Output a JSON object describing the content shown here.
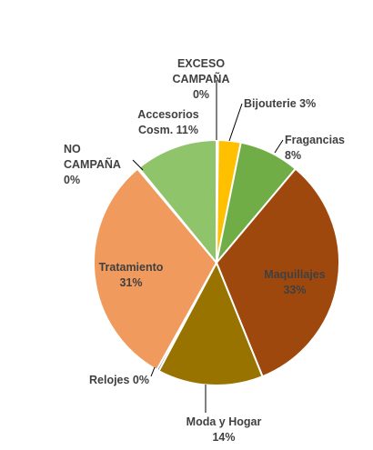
{
  "chart_data": {
    "type": "pie",
    "slices": [
      {
        "label": "EXCESO CAMPAÑA",
        "percent_label": "0%",
        "value": 0.2,
        "color": "#ffffff"
      },
      {
        "label": "Bijouterie",
        "percent_label": "3%",
        "value": 3,
        "color": "#ffc000"
      },
      {
        "label": "Fragancias",
        "percent_label": "8%",
        "value": 8,
        "color": "#70ad47"
      },
      {
        "label": "Maquillajes",
        "percent_label": "33%",
        "value": 33,
        "color": "#9e480e"
      },
      {
        "label": "Moda y Hogar",
        "percent_label": "14%",
        "value": 14,
        "color": "#997300"
      },
      {
        "label": "Relojes",
        "percent_label": "0%",
        "value": 0.3,
        "color": "#264478"
      },
      {
        "label": "Tratamiento",
        "percent_label": "31%",
        "value": 31,
        "color": "#f09a5d"
      },
      {
        "label": "NO CAMPAÑA",
        "percent_label": "0%",
        "value": 0.2,
        "color": "#ffffff"
      },
      {
        "label": "Accesorios Cosm.",
        "percent_label": "11%",
        "value": 11,
        "color": "#8fc46b"
      }
    ],
    "label_lines": [
      [
        "EXCESO",
        "CAMPAÑA",
        "0%"
      ],
      [
        "Bijouterie 3%"
      ],
      [
        "Fragancias",
        "8%"
      ],
      [
        "Maquillajes",
        "33%"
      ],
      [
        "Moda y Hogar",
        "14%"
      ],
      [
        "Relojes 0%"
      ],
      [
        "Tratamiento",
        "31%"
      ],
      [
        "NO",
        "CAMPAÑA",
        "0%"
      ],
      [
        "Accesorios",
        "Cosm. 11%"
      ]
    ]
  }
}
